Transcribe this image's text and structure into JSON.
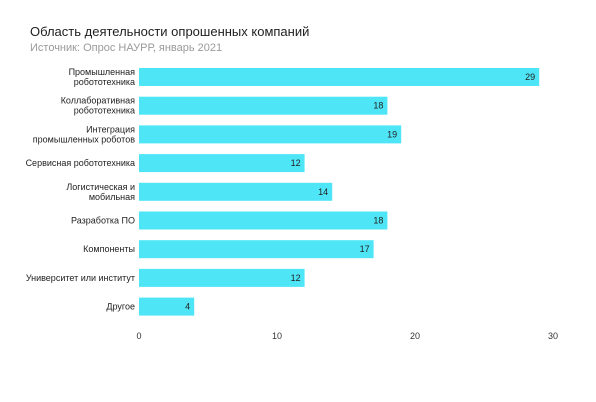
{
  "chart_data": {
    "type": "bar",
    "orientation": "horizontal",
    "title": "Область деятельности опрошенных компаний",
    "subtitle": "Источник: Опрос НАУРР, январь 2021",
    "categories": [
      [
        "Промышленная",
        "робототехника"
      ],
      [
        "Коллаборативная",
        "робототехника"
      ],
      [
        "Интеграция",
        "промышленных роботов"
      ],
      [
        "Сервисная робототехника"
      ],
      [
        "Логистическая и",
        "мобильная"
      ],
      [
        "Разработка ПО"
      ],
      [
        "Компоненты"
      ],
      [
        "Университет или институт"
      ],
      [
        "Другое"
      ]
    ],
    "values": [
      29,
      18,
      19,
      12,
      14,
      18,
      17,
      12,
      4
    ],
    "xlim": [
      0,
      30
    ],
    "xticks": [
      "0",
      "10",
      "20",
      "30"
    ],
    "grid": false,
    "bar_color": "#4ee6f7"
  }
}
